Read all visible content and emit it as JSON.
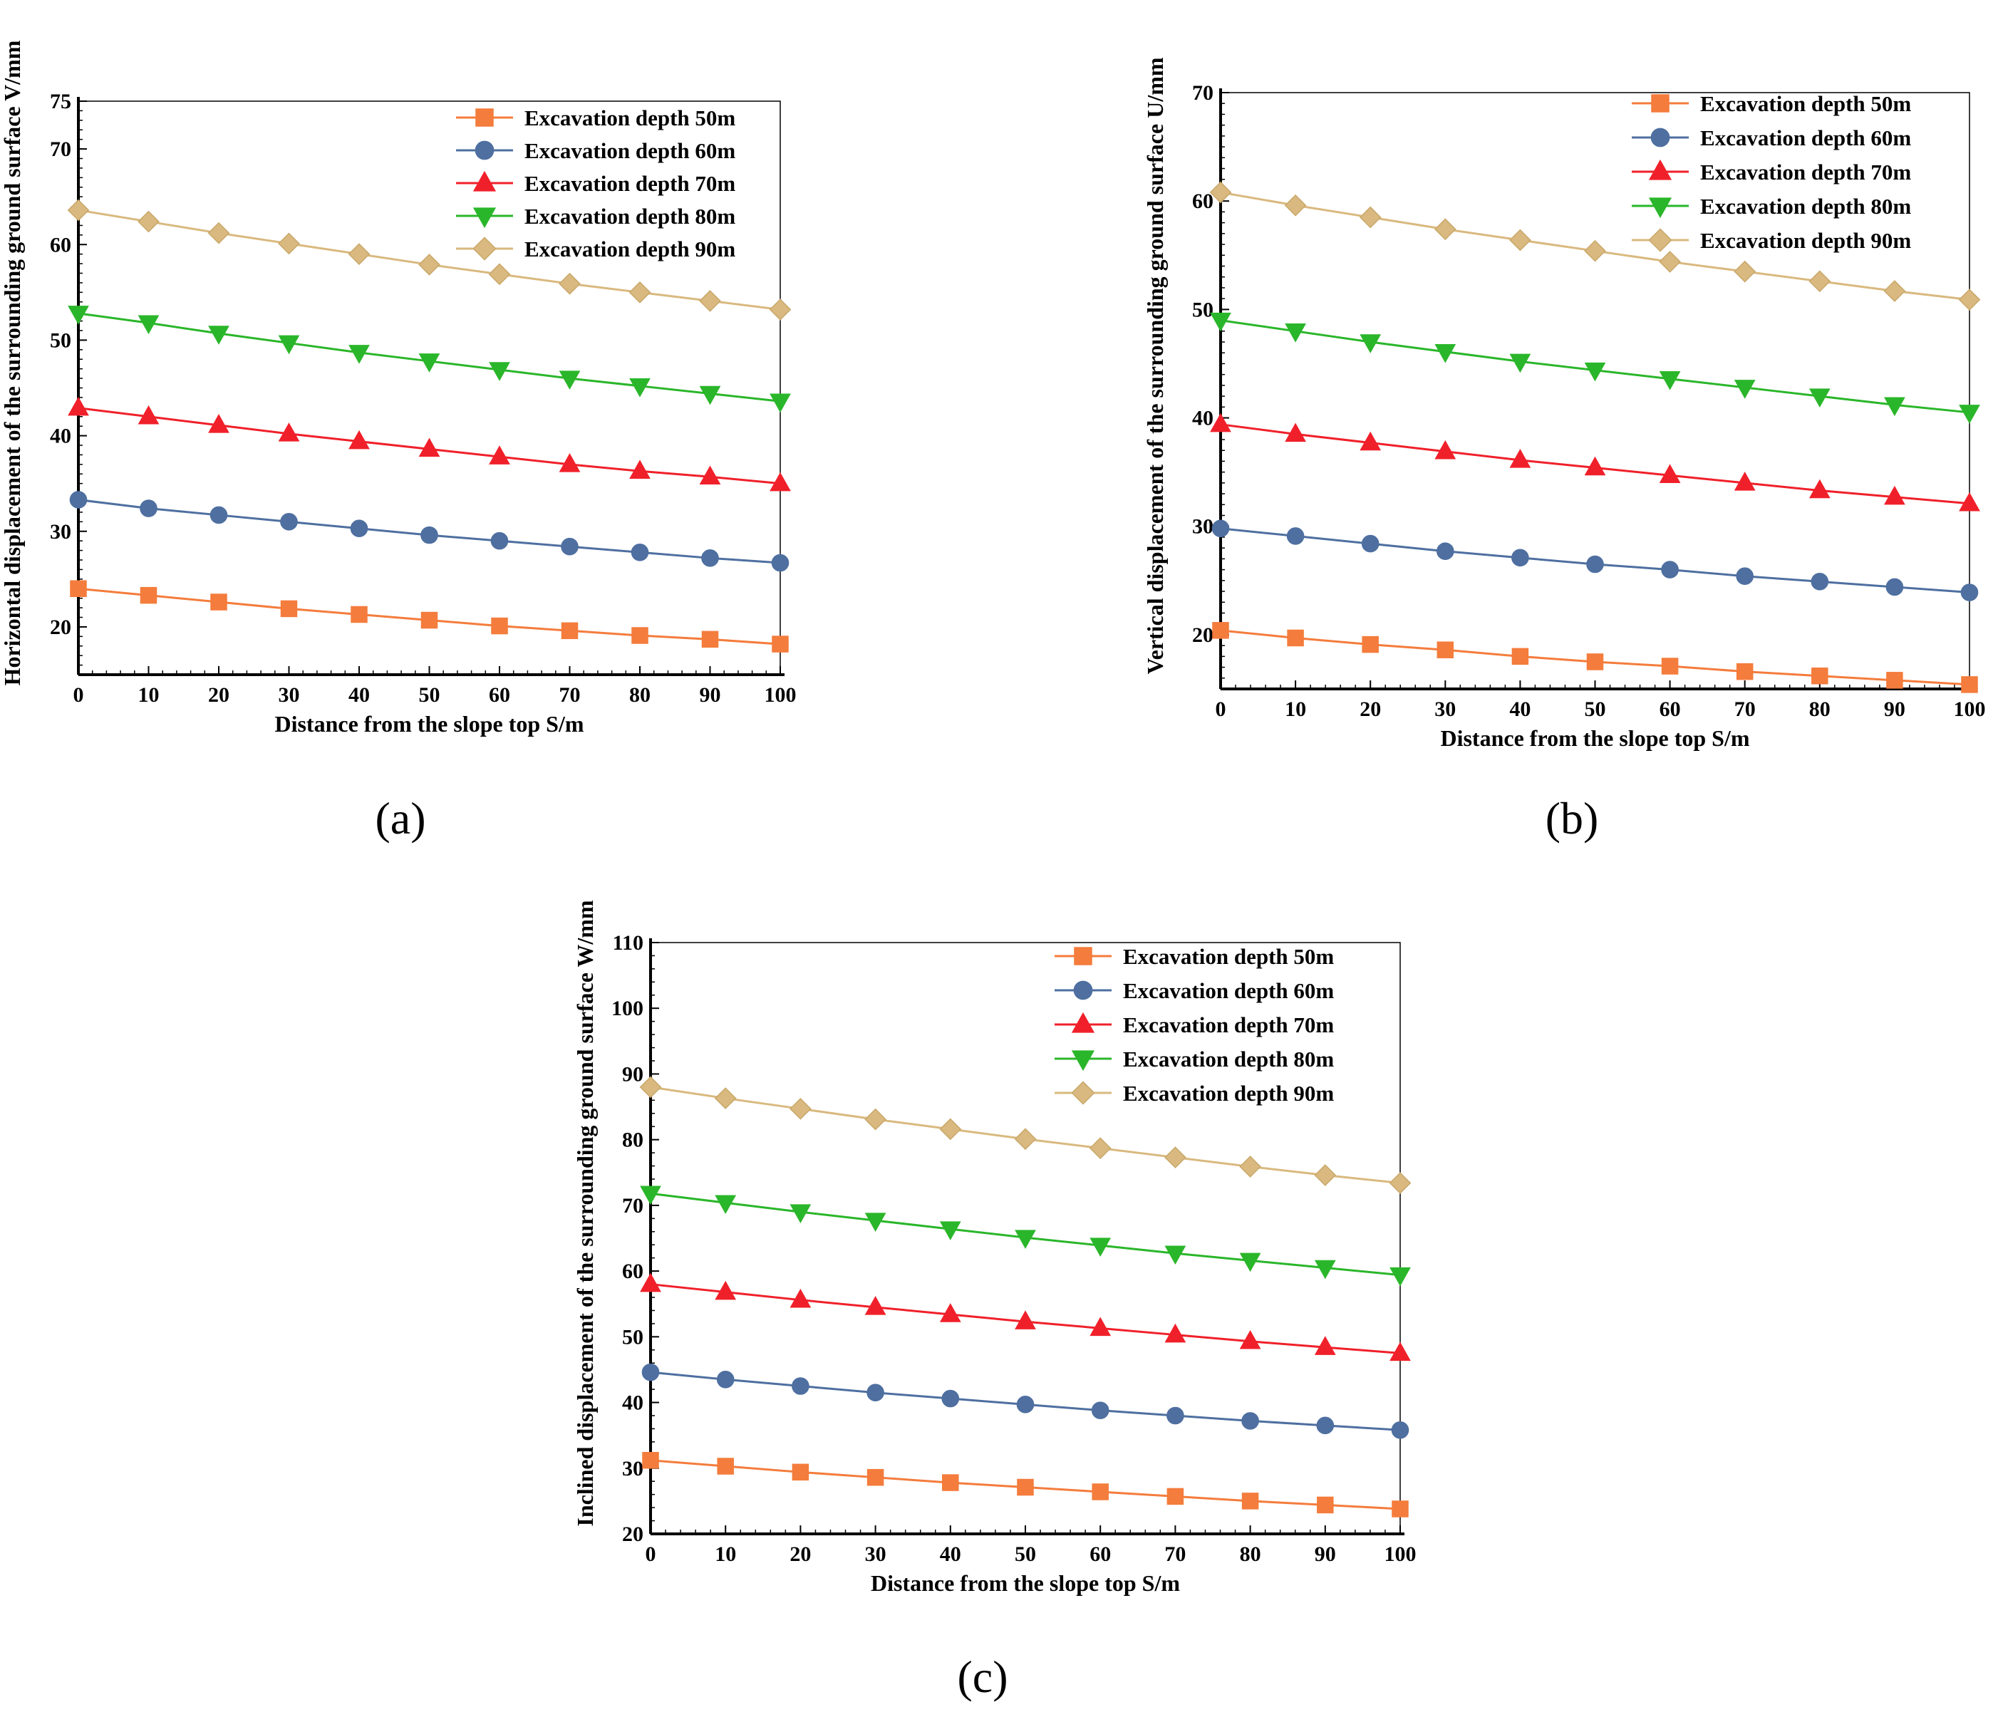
{
  "chart_data": [
    {
      "type": "line",
      "panel_label": "(a)",
      "title": "",
      "xlabel": "Distance from the slope top S/m",
      "ylabel": "Horizontal displacement of the surrounding ground surface V/mm",
      "x": [
        0,
        10,
        20,
        30,
        40,
        50,
        60,
        70,
        80,
        90,
        100
      ],
      "xlim": [
        0,
        100
      ],
      "ylim": [
        15,
        75
      ],
      "xticks": [
        0,
        10,
        20,
        30,
        40,
        50,
        60,
        70,
        80,
        90,
        100
      ],
      "yticks": [
        20,
        30,
        40,
        50,
        60,
        70,
        75
      ],
      "legend_position": "top-right",
      "series": [
        {
          "name": "Excavation depth 50m",
          "marker": "square",
          "values": [
            24.0,
            23.3,
            22.6,
            21.9,
            21.3,
            20.7,
            20.1,
            19.6,
            19.1,
            18.7,
            18.2
          ]
        },
        {
          "name": "Excavation depth 60m",
          "marker": "circle",
          "values": [
            33.3,
            32.4,
            31.7,
            31.0,
            30.3,
            29.6,
            29.0,
            28.4,
            27.8,
            27.2,
            26.7
          ]
        },
        {
          "name": "Excavation depth 70m",
          "marker": "triangle-up",
          "values": [
            42.9,
            42.0,
            41.1,
            40.2,
            39.4,
            38.6,
            37.8,
            37.0,
            36.3,
            35.7,
            35.0
          ]
        },
        {
          "name": "Excavation depth 80m",
          "marker": "triangle-down",
          "values": [
            52.8,
            51.8,
            50.7,
            49.7,
            48.7,
            47.8,
            46.9,
            46.0,
            45.2,
            44.4,
            43.6
          ]
        },
        {
          "name": "Excavation depth 90m",
          "marker": "diamond",
          "values": [
            63.6,
            62.4,
            61.2,
            60.1,
            59.0,
            57.9,
            56.9,
            55.9,
            55.0,
            54.1,
            53.2
          ]
        }
      ]
    },
    {
      "type": "line",
      "panel_label": "(b)",
      "title": "",
      "xlabel": "Distance from the slope top S/m",
      "ylabel": "Vertical displacement of the surrounding ground surface U/mm",
      "x": [
        0,
        10,
        20,
        30,
        40,
        50,
        60,
        70,
        80,
        90,
        100
      ],
      "xlim": [
        0,
        100
      ],
      "ylim": [
        15,
        70
      ],
      "xticks": [
        0,
        10,
        20,
        30,
        40,
        50,
        60,
        70,
        80,
        90,
        100
      ],
      "yticks": [
        20,
        30,
        40,
        50,
        60,
        70
      ],
      "legend_position": "top-right",
      "series": [
        {
          "name": "Excavation depth 50m",
          "marker": "square",
          "values": [
            20.4,
            19.7,
            19.1,
            18.6,
            18.0,
            17.5,
            17.1,
            16.6,
            16.2,
            15.8,
            15.4
          ]
        },
        {
          "name": "Excavation depth 60m",
          "marker": "circle",
          "values": [
            29.8,
            29.1,
            28.4,
            27.7,
            27.1,
            26.5,
            26.0,
            25.4,
            24.9,
            24.4,
            23.9
          ]
        },
        {
          "name": "Excavation depth 70m",
          "marker": "triangle-up",
          "values": [
            39.4,
            38.5,
            37.7,
            36.9,
            36.1,
            35.4,
            34.7,
            34.0,
            33.3,
            32.7,
            32.1
          ]
        },
        {
          "name": "Excavation depth 80m",
          "marker": "triangle-down",
          "values": [
            49.0,
            48.0,
            47.0,
            46.1,
            45.2,
            44.4,
            43.6,
            42.8,
            42.0,
            41.2,
            40.5
          ]
        },
        {
          "name": "Excavation depth 90m",
          "marker": "diamond",
          "values": [
            60.8,
            59.6,
            58.5,
            57.4,
            56.4,
            55.4,
            54.4,
            53.5,
            52.6,
            51.7,
            50.9
          ]
        }
      ]
    },
    {
      "type": "line",
      "panel_label": "(c)",
      "title": "",
      "xlabel": "Distance from the slope top S/m",
      "ylabel": "Inclined displacement of the surrounding ground surface W/mm",
      "x": [
        0,
        10,
        20,
        30,
        40,
        50,
        60,
        70,
        80,
        90,
        100
      ],
      "xlim": [
        0,
        100
      ],
      "ylim": [
        20,
        110
      ],
      "xticks": [
        0,
        10,
        20,
        30,
        40,
        50,
        60,
        70,
        80,
        90,
        100
      ],
      "yticks": [
        20,
        30,
        40,
        50,
        60,
        70,
        80,
        90,
        100,
        110
      ],
      "legend_position": "top-right",
      "series": [
        {
          "name": "Excavation depth 50m",
          "marker": "square",
          "values": [
            31.2,
            30.3,
            29.4,
            28.6,
            27.8,
            27.1,
            26.4,
            25.7,
            25.0,
            24.4,
            23.8
          ]
        },
        {
          "name": "Excavation depth 60m",
          "marker": "circle",
          "values": [
            44.6,
            43.5,
            42.5,
            41.5,
            40.6,
            39.7,
            38.8,
            38.0,
            37.2,
            36.5,
            35.8
          ]
        },
        {
          "name": "Excavation depth 70m",
          "marker": "triangle-up",
          "values": [
            58.0,
            56.8,
            55.6,
            54.5,
            53.4,
            52.3,
            51.3,
            50.3,
            49.3,
            48.4,
            47.5
          ]
        },
        {
          "name": "Excavation depth 80m",
          "marker": "triangle-down",
          "values": [
            71.8,
            70.4,
            69.0,
            67.7,
            66.4,
            65.1,
            63.9,
            62.7,
            61.6,
            60.5,
            59.4
          ]
        },
        {
          "name": "Excavation depth 90m",
          "marker": "diamond",
          "values": [
            88.0,
            86.3,
            84.7,
            83.1,
            81.6,
            80.1,
            78.7,
            77.3,
            75.9,
            74.6,
            73.4
          ]
        }
      ]
    }
  ],
  "series_colors": [
    "#f47c3c",
    "#4e6fa0",
    "#f0202a",
    "#2ab62a",
    "#d9b97f"
  ],
  "series_edge_colors": [
    "#f47c3c",
    "#4e6fa0",
    "#f0202a",
    "#2ab62a",
    "#c9a86a"
  ]
}
